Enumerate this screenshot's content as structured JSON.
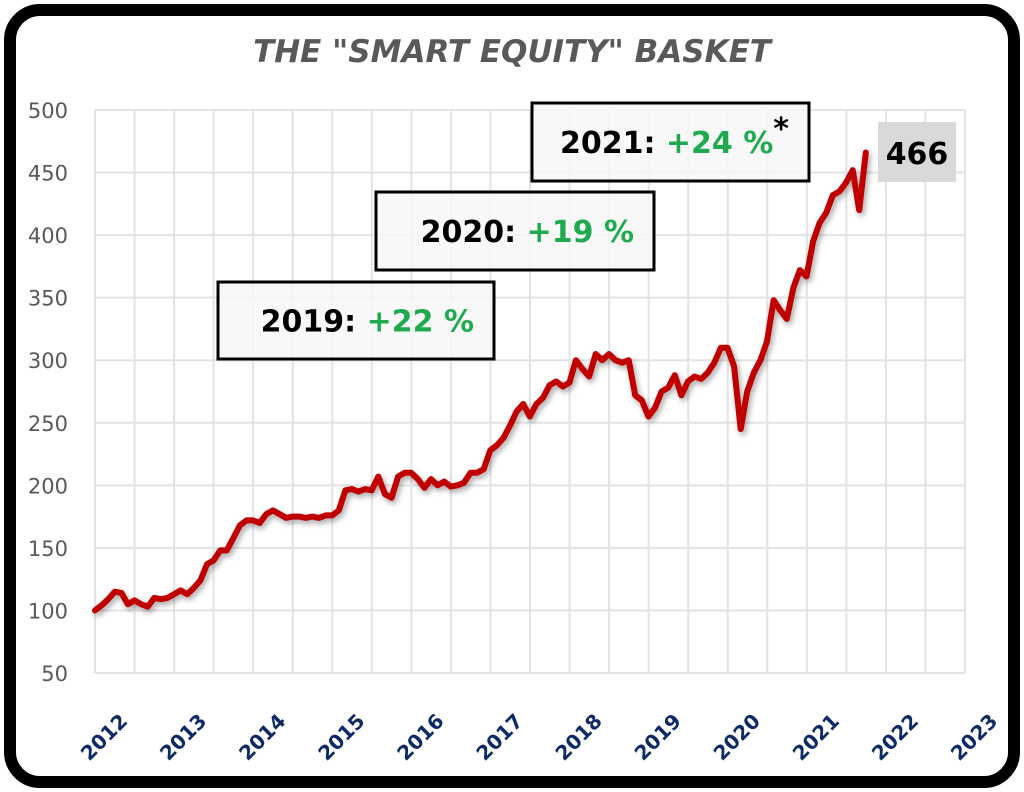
{
  "chart_data": {
    "type": "line",
    "title": "THE \"SMART EQUITY\" BASKET",
    "xlabel": "",
    "ylabel": "",
    "ylim": [
      50,
      500
    ],
    "yticks": [
      50,
      100,
      150,
      200,
      250,
      300,
      350,
      400,
      450,
      500
    ],
    "xlim": [
      2012,
      2023
    ],
    "xticks": [
      "2012",
      "2013",
      "2014",
      "2015",
      "2016",
      "2017",
      "2018",
      "2019",
      "2020",
      "2021",
      "2022",
      "2023"
    ],
    "grid": true,
    "legend": null,
    "line_color": "#c00000",
    "series": [
      {
        "name": "Smart Equity Basket",
        "start": 2012.0,
        "step_years": 0.0833,
        "values": [
          100,
          104,
          109,
          115,
          114,
          105,
          108,
          105,
          103,
          110,
          109,
          110,
          113,
          116,
          113,
          118,
          124,
          137,
          140,
          148,
          148,
          158,
          168,
          172,
          172,
          170,
          177,
          180,
          177,
          174,
          175,
          175,
          174,
          175,
          174,
          176,
          176,
          180,
          196,
          197,
          195,
          197,
          196,
          207,
          193,
          190,
          207,
          210,
          210,
          205,
          198,
          205,
          200,
          203,
          199,
          200,
          202,
          210,
          210,
          213,
          228,
          232,
          238,
          248,
          259,
          265,
          255,
          265,
          270,
          280,
          283,
          279,
          282,
          300,
          293,
          287,
          305,
          300,
          305,
          300,
          298,
          300,
          272,
          268,
          255,
          262,
          275,
          278,
          288,
          272,
          283,
          287,
          285,
          290,
          298,
          310,
          310,
          295,
          245,
          275,
          290,
          300,
          315,
          348,
          340,
          333,
          358,
          372,
          367,
          395,
          410,
          418,
          432,
          435,
          442,
          452,
          420,
          466
        ]
      }
    ],
    "annotations": [
      {
        "label": "2019:",
        "value": "+22 %",
        "suffix": ""
      },
      {
        "label": "2020:",
        "value": "+19 %",
        "suffix": ""
      },
      {
        "label": "2021:",
        "value": "+24 %",
        "suffix": "*"
      }
    ],
    "last_value_label": "466"
  },
  "colors": {
    "line": "#c00000",
    "positive": "#1faa4f",
    "xtick": "#0d2a66",
    "axis_text": "#595959",
    "grid": "#e3e3e3",
    "last_label_bg": "#d9d9d9"
  }
}
